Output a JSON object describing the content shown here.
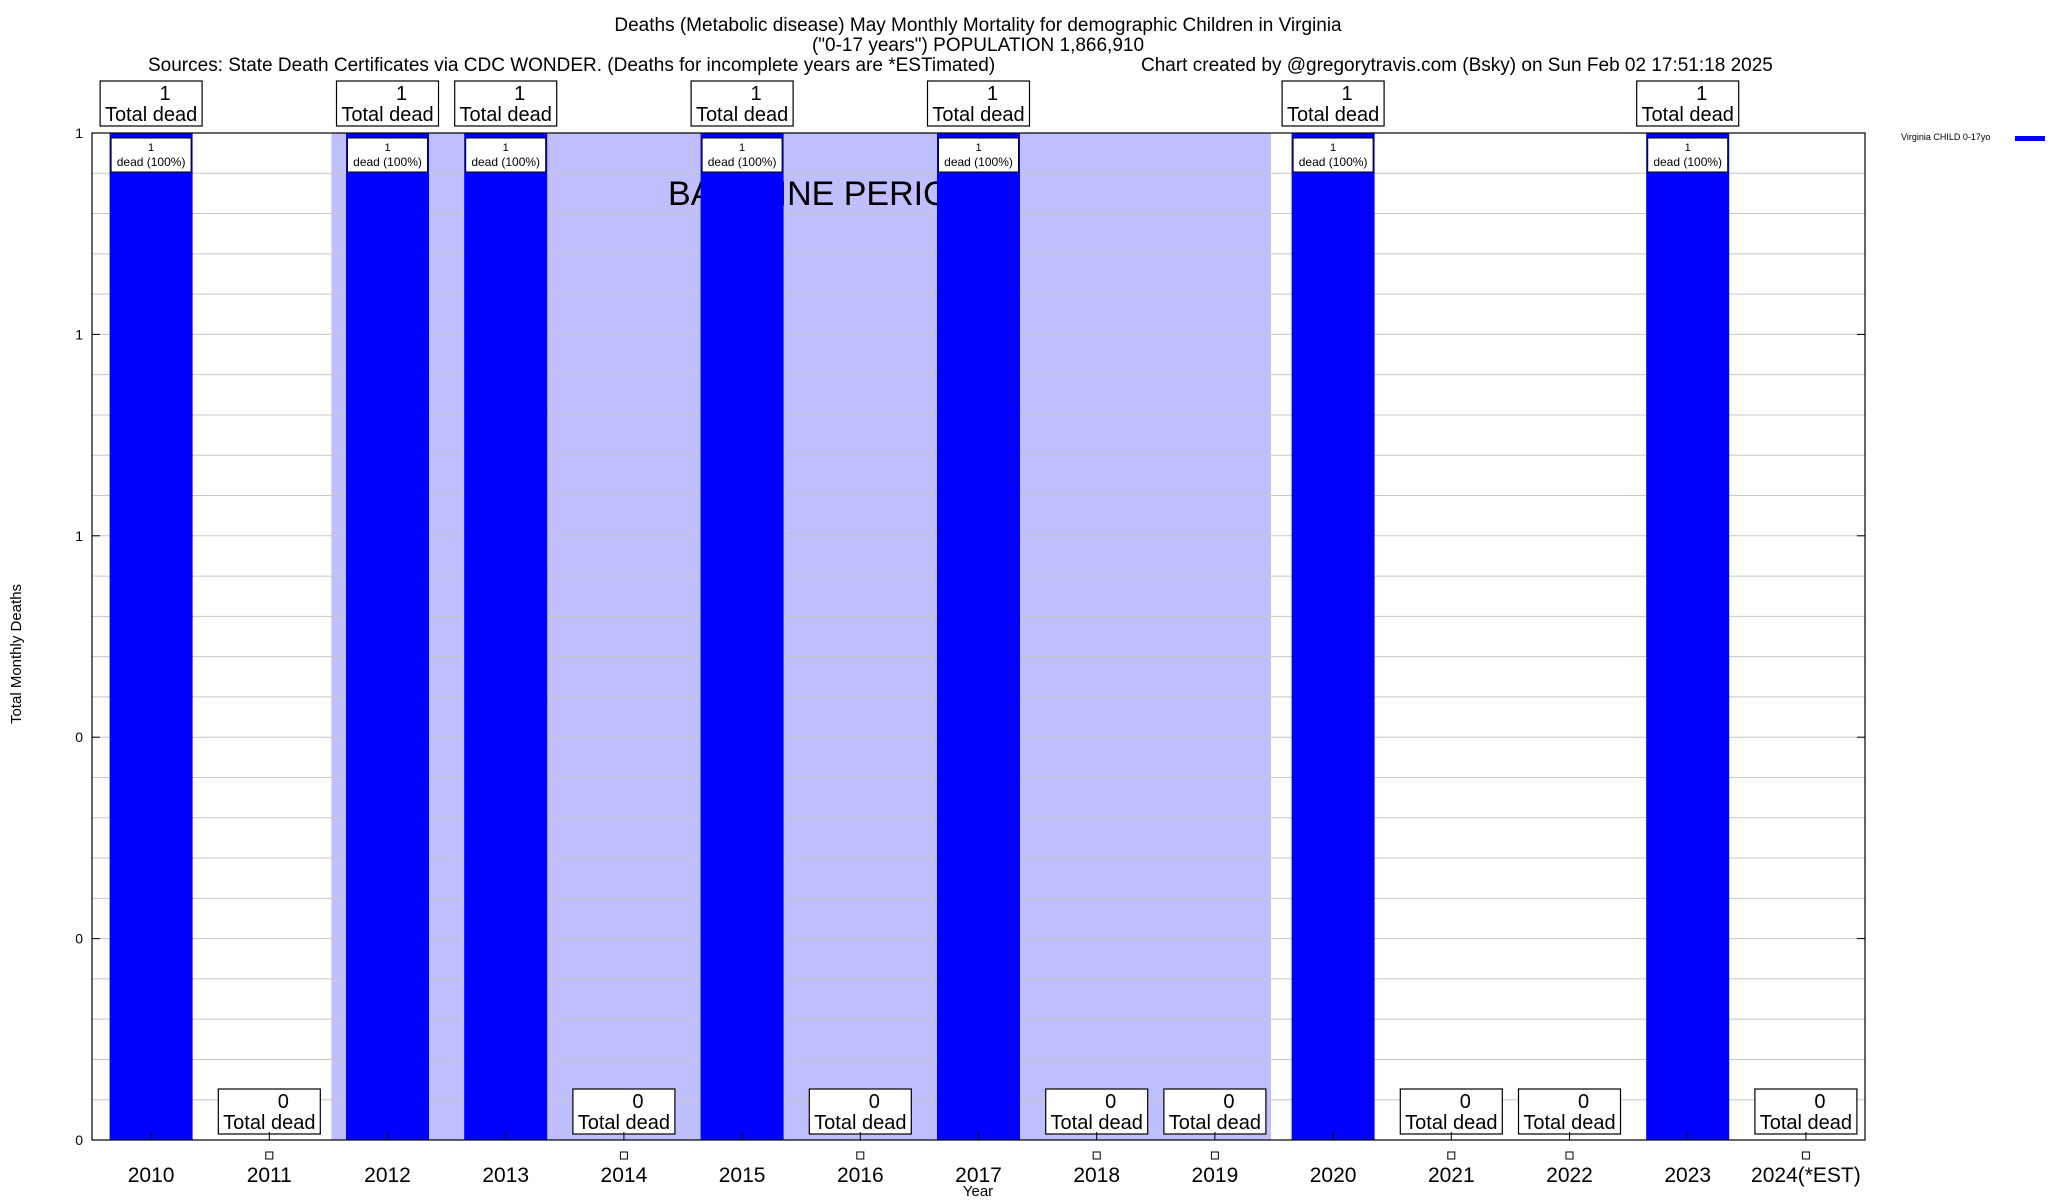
{
  "header": {
    "title_line1": "Deaths (Metabolic disease) May Monthly Mortality for demographic Children in Virginia",
    "title_line2": "(\"0-17 years\") POPULATION 1,866,910",
    "sources": "Sources: State Death Certificates via CDC WONDER. (Deaths for incomplete years are *ESTimated)",
    "credit": "Chart created by @gregorytravis.com (Bsky) on Sun Feb 02 17:51:18 2025"
  },
  "chart_data": {
    "type": "bar",
    "categories": [
      "2010",
      "2011",
      "2012",
      "2013",
      "2014",
      "2015",
      "2016",
      "2017",
      "2018",
      "2019",
      "2020",
      "2021",
      "2022",
      "2023",
      "2024(*EST)"
    ],
    "series": [
      {
        "name": "Virginia CHILD 0-17yo",
        "values": [
          1,
          0,
          1,
          1,
          0,
          1,
          0,
          1,
          0,
          0,
          1,
          0,
          0,
          1,
          0
        ]
      }
    ],
    "total_labels": [
      "1",
      "0",
      "1",
      "1",
      "0",
      "1",
      "0",
      "1",
      "0",
      "0",
      "1",
      "0",
      "0",
      "1",
      "0"
    ],
    "total_suffix": "Total dead",
    "bar_labels": [
      "1",
      "",
      "1",
      "1",
      "",
      "1",
      "",
      "1",
      "",
      "",
      "1",
      "",
      "",
      "1",
      ""
    ],
    "bar_label_suffix": "dead (100%)",
    "ylim": [
      0,
      1
    ],
    "yticks": [
      0,
      0.2,
      0.4,
      0.6,
      0.8,
      1
    ],
    "ytick_labels": [
      "0",
      "0",
      "0",
      "1",
      "1",
      "1"
    ],
    "xlabel": "Year",
    "ylabel": "Total Monthly Deaths",
    "baseline_period": {
      "start": "2012",
      "end": "2019",
      "label": "BASELINE PERIOD"
    },
    "grid": true,
    "legend_position": "top-right",
    "colors": {
      "bar": "#0000ff",
      "baseline": "#bfbffd",
      "grid": "#c8c8c8"
    }
  }
}
